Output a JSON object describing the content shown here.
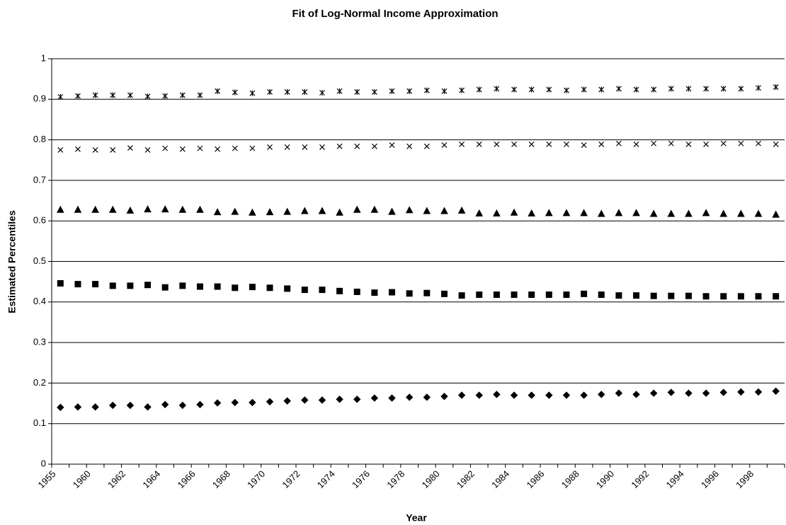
{
  "chart_data": {
    "type": "scatter",
    "title": "Fit of Log-Normal Income Approximation",
    "x_label": "Year",
    "y_label": "Estimated Percentiles",
    "categories": [
      "1955",
      null,
      "1960",
      null,
      "1962",
      null,
      "1964",
      null,
      "1966",
      null,
      "1968",
      null,
      "1970",
      null,
      "1972",
      null,
      "1974",
      null,
      "1976",
      null,
      "1978",
      null,
      "1980",
      null,
      "1982",
      null,
      "1984",
      null,
      "1986",
      null,
      "1988",
      null,
      "1990",
      null,
      "1992",
      null,
      "1994",
      null,
      "1996",
      null,
      "1998",
      null
    ],
    "ylim": [
      0,
      1
    ],
    "yticks": [
      0,
      0.1,
      0.2,
      0.3,
      0.4,
      0.5,
      0.6,
      0.7,
      0.8,
      0.9,
      1
    ],
    "grid": true,
    "series": [
      {
        "marker": "diamond",
        "color": "#000000",
        "values": [
          0.14,
          0.141,
          0.141,
          0.145,
          0.145,
          0.141,
          0.147,
          0.145,
          0.147,
          0.151,
          0.152,
          0.152,
          0.154,
          0.156,
          0.158,
          0.158,
          0.16,
          0.16,
          0.163,
          0.163,
          0.165,
          0.165,
          0.167,
          0.17,
          0.17,
          0.172,
          0.17,
          0.17,
          0.17,
          0.17,
          0.17,
          0.172,
          0.175,
          0.172,
          0.175,
          0.177,
          0.175,
          0.175,
          0.177,
          0.178,
          0.178,
          0.18
        ]
      },
      {
        "marker": "square",
        "color": "#000000",
        "values": [
          0.446,
          0.444,
          0.444,
          0.44,
          0.44,
          0.442,
          0.436,
          0.44,
          0.438,
          0.438,
          0.435,
          0.437,
          0.435,
          0.433,
          0.43,
          0.43,
          0.427,
          0.425,
          0.423,
          0.424,
          0.421,
          0.422,
          0.42,
          0.416,
          0.418,
          0.418,
          0.418,
          0.418,
          0.418,
          0.418,
          0.42,
          0.418,
          0.416,
          0.416,
          0.415,
          0.415,
          0.415,
          0.414,
          0.414,
          0.414,
          0.414,
          0.414
        ]
      },
      {
        "marker": "triangle",
        "color": "#000000",
        "values": [
          0.627,
          0.627,
          0.627,
          0.627,
          0.625,
          0.628,
          0.628,
          0.627,
          0.627,
          0.621,
          0.622,
          0.62,
          0.621,
          0.622,
          0.624,
          0.624,
          0.62,
          0.627,
          0.627,
          0.622,
          0.626,
          0.624,
          0.624,
          0.625,
          0.618,
          0.618,
          0.62,
          0.618,
          0.619,
          0.619,
          0.619,
          0.617,
          0.619,
          0.619,
          0.617,
          0.617,
          0.617,
          0.619,
          0.617,
          0.617,
          0.617,
          0.615
        ]
      },
      {
        "marker": "x",
        "color": "#000000",
        "values": [
          0.775,
          0.777,
          0.775,
          0.775,
          0.78,
          0.775,
          0.779,
          0.777,
          0.779,
          0.777,
          0.779,
          0.779,
          0.782,
          0.782,
          0.782,
          0.782,
          0.784,
          0.784,
          0.784,
          0.787,
          0.784,
          0.784,
          0.787,
          0.789,
          0.789,
          0.789,
          0.789,
          0.789,
          0.789,
          0.789,
          0.787,
          0.789,
          0.791,
          0.789,
          0.791,
          0.791,
          0.789,
          0.789,
          0.791,
          0.791,
          0.791,
          0.789
        ]
      },
      {
        "marker": "star",
        "color": "#000000",
        "values": [
          0.906,
          0.908,
          0.91,
          0.91,
          0.91,
          0.907,
          0.908,
          0.91,
          0.91,
          0.92,
          0.917,
          0.915,
          0.918,
          0.918,
          0.918,
          0.916,
          0.92,
          0.918,
          0.918,
          0.92,
          0.92,
          0.922,
          0.92,
          0.922,
          0.924,
          0.926,
          0.924,
          0.924,
          0.924,
          0.922,
          0.924,
          0.924,
          0.926,
          0.924,
          0.924,
          0.926,
          0.926,
          0.926,
          0.926,
          0.926,
          0.928,
          0.93
        ]
      }
    ]
  }
}
